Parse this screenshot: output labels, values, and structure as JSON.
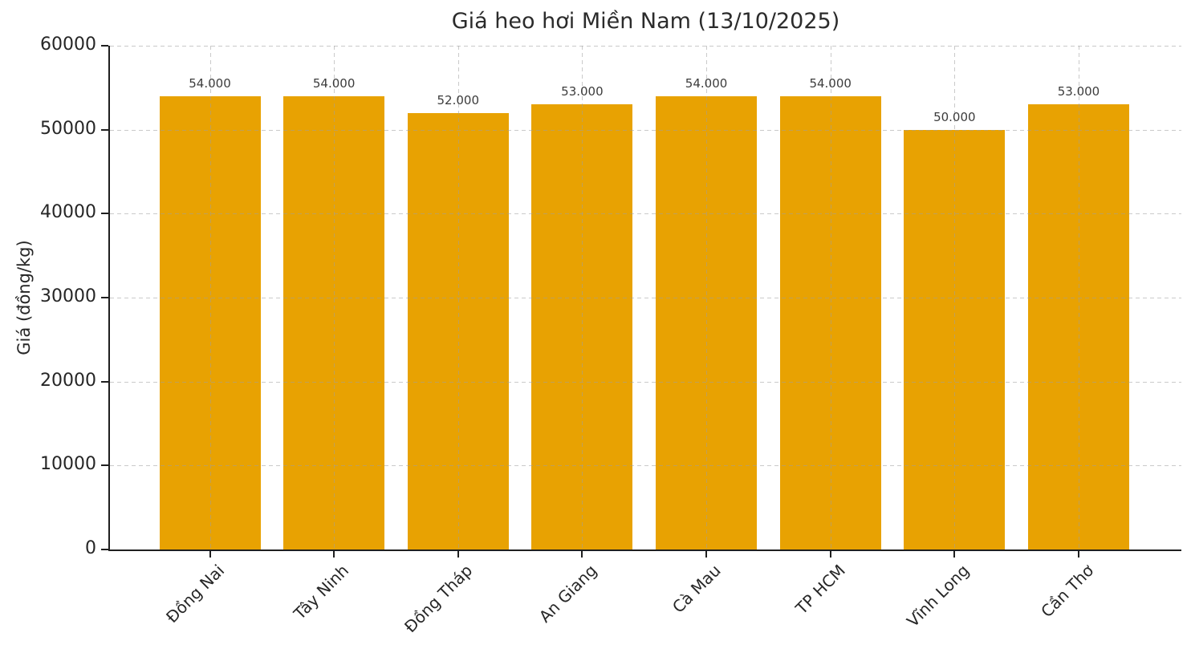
{
  "chart_data": {
    "type": "bar",
    "title": "Giá heo hơi Miền Nam (13/10/2025)",
    "xlabel": "",
    "ylabel": "Giá (đồng/kg)",
    "categories": [
      "Đồng Nai",
      "Tây Ninh",
      "Đồng Tháp",
      "An Giang",
      "Cà Mau",
      "TP HCM",
      "Vĩnh Long",
      "Cần Thơ"
    ],
    "values": [
      54000,
      54000,
      52000,
      53000,
      54000,
      54000,
      50000,
      53000
    ],
    "value_labels": [
      "54.000",
      "54.000",
      "52.000",
      "53.000",
      "54.000",
      "54.000",
      "50.000",
      "53.000"
    ],
    "ylim": [
      0,
      60000
    ],
    "yticks": [
      0,
      10000,
      20000,
      30000,
      40000,
      50000,
      60000
    ],
    "grid": true,
    "grid_style": "dashed",
    "legend": "none",
    "x_tick_rotation": 45,
    "colors": {
      "bar": "#E8A202",
      "grid": "#b4b4b4",
      "axis": "#1f1f1f",
      "text": "#262626",
      "value_label": "#3c3c3c"
    }
  }
}
